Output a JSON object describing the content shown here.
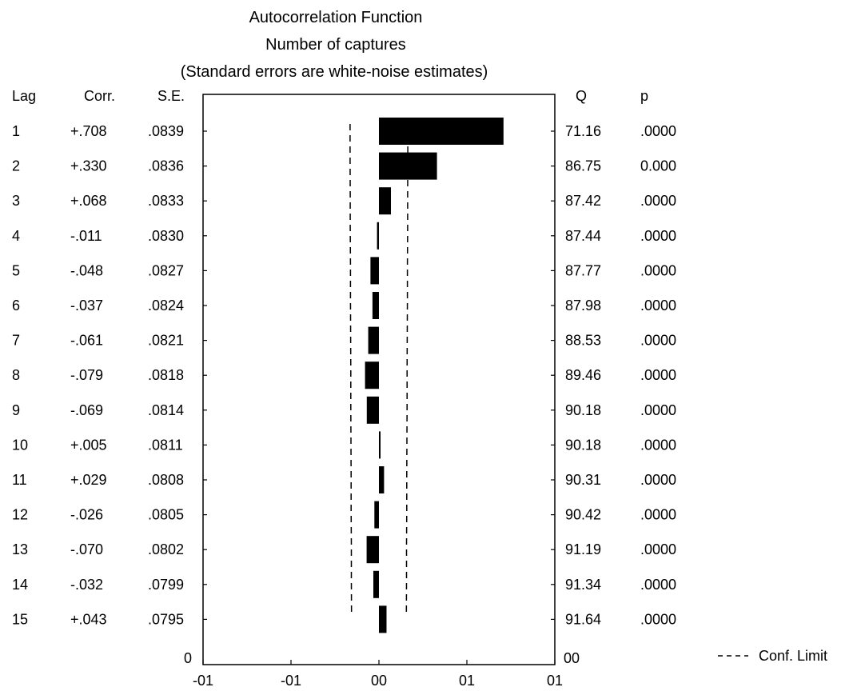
{
  "chart_data": {
    "type": "bar",
    "orientation": "horizontal",
    "title": "Autocorrelation Function",
    "subtitle": "Number of captures",
    "note": "(Standard errors are white-noise estimates)",
    "columns": {
      "lag": "Lag",
      "corr": "Corr.",
      "se": "S.E.",
      "q": "Q",
      "p": "p"
    },
    "rows": [
      {
        "lag": "1",
        "corr_label": "+.708",
        "se": ".0839",
        "q": "71.16",
        "p": ".0000"
      },
      {
        "lag": "2",
        "corr_label": "+.330",
        "se": ".0836",
        "q": "86.75",
        "p": "0.000"
      },
      {
        "lag": "3",
        "corr_label": "+.068",
        "se": ".0833",
        "q": "87.42",
        "p": ".0000"
      },
      {
        "lag": "4",
        "corr_label": "-.011",
        "se": ".0830",
        "q": "87.44",
        "p": ".0000"
      },
      {
        "lag": "5",
        "corr_label": "-.048",
        "se": ".0827",
        "q": "87.77",
        "p": ".0000"
      },
      {
        "lag": "6",
        "corr_label": "-.037",
        "se": ".0824",
        "q": "87.98",
        "p": ".0000"
      },
      {
        "lag": "7",
        "corr_label": "-.061",
        "se": ".0821",
        "q": "88.53",
        "p": ".0000"
      },
      {
        "lag": "8",
        "corr_label": "-.079",
        "se": ".0818",
        "q": "89.46",
        "p": ".0000"
      },
      {
        "lag": "9",
        "corr_label": "-.069",
        "se": ".0814",
        "q": "90.18",
        "p": ".0000"
      },
      {
        "lag": "10",
        "corr_label": "+.005",
        "se": ".0811",
        "q": "90.18",
        "p": ".0000"
      },
      {
        "lag": "11",
        "corr_label": "+.029",
        "se": ".0808",
        "q": "90.31",
        "p": ".0000"
      },
      {
        "lag": "12",
        "corr_label": "-.026",
        "se": ".0805",
        "q": "90.42",
        "p": ".0000"
      },
      {
        "lag": "13",
        "corr_label": "-.070",
        "se": ".0802",
        "q": "91.19",
        "p": ".0000"
      },
      {
        "lag": "14",
        "corr_label": "-.032",
        "se": ".0799",
        "q": "91.34",
        "p": ".0000"
      },
      {
        "lag": "15",
        "corr_label": "+.043",
        "se": ".0795",
        "q": "91.64",
        "p": ".0000"
      }
    ],
    "values": [
      0.708,
      0.33,
      0.068,
      -0.011,
      -0.048,
      -0.037,
      -0.061,
      -0.079,
      -0.069,
      0.005,
      0.029,
      -0.026,
      -0.07,
      -0.032,
      0.043
    ],
    "conf_limit": [
      0.164,
      0.164,
      0.163,
      0.163,
      0.162,
      0.162,
      0.161,
      0.16,
      0.16,
      0.159,
      0.158,
      0.158,
      0.157,
      0.157,
      0.156
    ],
    "xlim": [
      -1,
      1
    ],
    "x_tick_labels": [
      "-01",
      "-01",
      "00",
      "01",
      "01"
    ],
    "left_axis_label": "0",
    "right_axis_label": "00",
    "legend": {
      "label": "Conf. Limit",
      "position": "bottom-right",
      "line_color": "#000000"
    },
    "bar_color": "#000000",
    "grid": false
  }
}
